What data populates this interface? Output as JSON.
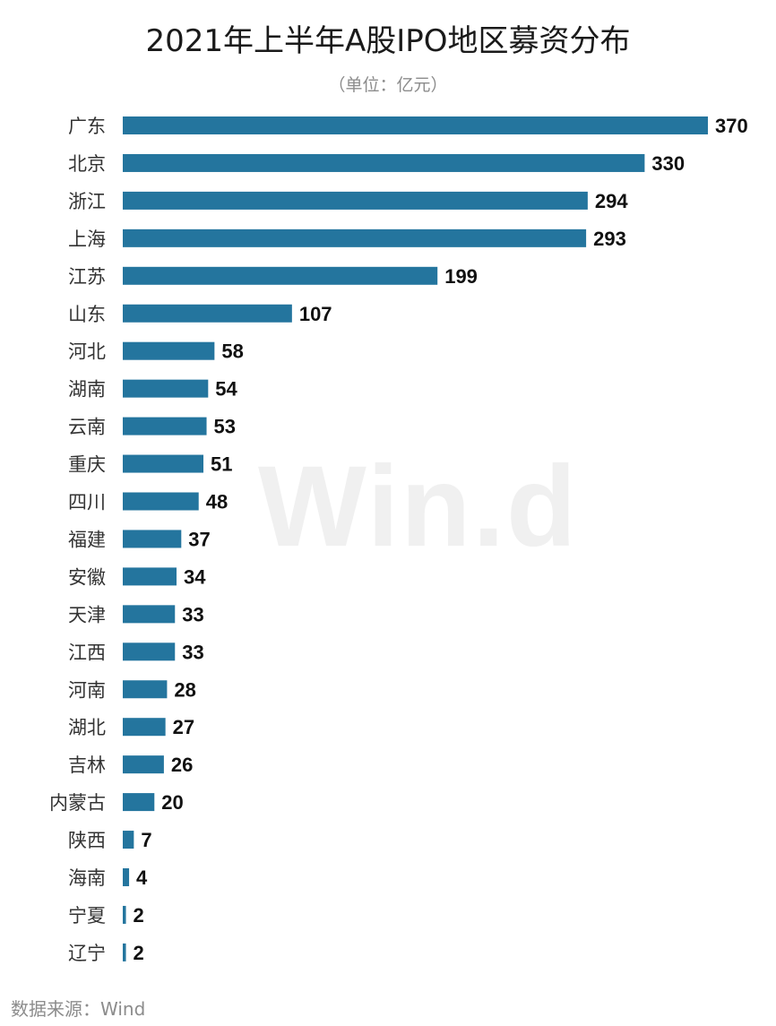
{
  "chart_data": {
    "type": "bar",
    "orientation": "horizontal",
    "title": "2021年上半年A股IPO地区募资分布",
    "subtitle": "（单位：亿元）",
    "categories": [
      "广东",
      "北京",
      "浙江",
      "上海",
      "江苏",
      "山东",
      "河北",
      "湖南",
      "云南",
      "重庆",
      "四川",
      "福建",
      "安徽",
      "天津",
      "江西",
      "河南",
      "湖北",
      "吉林",
      "内蒙古",
      "陕西",
      "海南",
      "宁夏",
      "辽宁"
    ],
    "values": [
      370,
      330,
      294,
      293,
      199,
      107,
      58,
      54,
      53,
      51,
      48,
      37,
      34,
      33,
      33,
      28,
      27,
      26,
      20,
      7,
      4,
      2,
      2
    ],
    "xlim": [
      0,
      370
    ],
    "grid": false,
    "legend": "none",
    "bar_color": "#24759e",
    "data_labels": true
  },
  "watermark": "Win.d",
  "source": "数据来源：Wind"
}
